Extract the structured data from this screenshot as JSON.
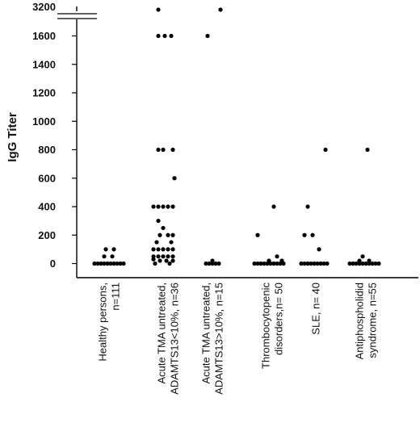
{
  "chart_data": {
    "type": "scatter",
    "title": "",
    "ylabel": "IgG Titer",
    "xlabel": "",
    "ylim": [
      0,
      1700
    ],
    "y_break": {
      "after": 1700,
      "top_label": "3200",
      "top_value": 3200
    },
    "yticks": [
      0,
      200,
      400,
      600,
      800,
      1000,
      1200,
      1400,
      1600
    ],
    "ytick_labels": [
      "0",
      "200",
      "400",
      "600",
      "800",
      "1000",
      "1200",
      "1400",
      "1600"
    ],
    "grid": false,
    "legend": "none",
    "marker_color": "#000000",
    "categories": [
      {
        "lines": [
          "Healthy    persons,",
          "n=111"
        ]
      },
      {
        "lines": [
          "Acute TMA untreated,",
          "ADAMTS13<10%, n=36"
        ]
      },
      {
        "lines": [
          "Acute TMA untreated,",
          "ADAMTS13>10%, n=15"
        ]
      },
      {
        "lines": [
          "Thrombocytopenic",
          "disorders,n= 50"
        ]
      },
      {
        "lines": [
          "SLE, n= 40"
        ]
      },
      {
        "lines": [
          "Antiphospholidid",
          "syndrome, n=55"
        ]
      }
    ],
    "series": [
      {
        "category": 0,
        "points": [
          [
            -0.18,
            0
          ],
          [
            -0.14,
            0
          ],
          [
            -0.1,
            0
          ],
          [
            -0.06,
            0
          ],
          [
            -0.02,
            0
          ],
          [
            0.02,
            0
          ],
          [
            0.06,
            0
          ],
          [
            0.1,
            0
          ],
          [
            0.14,
            0
          ],
          [
            0.18,
            0
          ],
          [
            -0.06,
            50
          ],
          [
            0.04,
            50
          ],
          [
            -0.04,
            100
          ],
          [
            0.06,
            100
          ]
        ]
      },
      {
        "category": 1,
        "points": [
          [
            -0.12,
            3200
          ],
          [
            -0.12,
            1600
          ],
          [
            -0.04,
            1600
          ],
          [
            0.04,
            1600
          ],
          [
            -0.12,
            800
          ],
          [
            -0.06,
            800
          ],
          [
            0.06,
            800
          ],
          [
            0.08,
            600
          ],
          [
            -0.18,
            400
          ],
          [
            -0.12,
            400
          ],
          [
            -0.06,
            400
          ],
          [
            0.0,
            400
          ],
          [
            0.06,
            400
          ],
          [
            -0.12,
            300
          ],
          [
            -0.06,
            250
          ],
          [
            -0.1,
            200
          ],
          [
            0.0,
            200
          ],
          [
            0.06,
            200
          ],
          [
            -0.14,
            150
          ],
          [
            0.04,
            150
          ],
          [
            -0.18,
            100
          ],
          [
            -0.12,
            100
          ],
          [
            -0.06,
            100
          ],
          [
            0.0,
            100
          ],
          [
            0.06,
            100
          ],
          [
            -0.18,
            50
          ],
          [
            -0.12,
            50
          ],
          [
            -0.06,
            50
          ],
          [
            0.0,
            50
          ],
          [
            0.06,
            50
          ],
          [
            -0.18,
            30
          ],
          [
            -0.1,
            20
          ],
          [
            -0.02,
            20
          ],
          [
            0.06,
            20
          ],
          [
            -0.16,
            0
          ],
          [
            0.02,
            0
          ]
        ]
      },
      {
        "category": 2,
        "points": [
          [
            0.1,
            3200
          ],
          [
            -0.06,
            1600
          ],
          [
            -0.08,
            0
          ],
          [
            -0.04,
            0
          ],
          [
            0.0,
            0
          ],
          [
            0.04,
            0
          ],
          [
            0.08,
            0
          ],
          [
            0.0,
            20
          ]
        ]
      },
      {
        "category": 3,
        "points": [
          [
            -0.22,
            0
          ],
          [
            -0.18,
            0
          ],
          [
            -0.14,
            0
          ],
          [
            -0.1,
            0
          ],
          [
            -0.06,
            0
          ],
          [
            -0.02,
            0
          ],
          [
            0.02,
            0
          ],
          [
            0.06,
            0
          ],
          [
            0.1,
            0
          ],
          [
            0.14,
            0
          ],
          [
            -0.18,
            200
          ],
          [
            0.02,
            400
          ],
          [
            0.06,
            50
          ],
          [
            -0.04,
            20
          ],
          [
            0.12,
            20
          ]
        ]
      },
      {
        "category": 4,
        "points": [
          [
            -0.18,
            0
          ],
          [
            -0.14,
            0
          ],
          [
            -0.1,
            0
          ],
          [
            -0.06,
            0
          ],
          [
            -0.02,
            0
          ],
          [
            0.02,
            0
          ],
          [
            0.06,
            0
          ],
          [
            0.1,
            0
          ],
          [
            0.14,
            0
          ],
          [
            -0.1,
            400
          ],
          [
            -0.14,
            200
          ],
          [
            -0.04,
            200
          ],
          [
            0.04,
            100
          ],
          [
            0.12,
            800
          ]
        ]
      },
      {
        "category": 5,
        "points": [
          [
            -0.2,
            0
          ],
          [
            -0.16,
            0
          ],
          [
            -0.12,
            0
          ],
          [
            -0.08,
            0
          ],
          [
            -0.04,
            0
          ],
          [
            0.0,
            0
          ],
          [
            0.04,
            0
          ],
          [
            0.08,
            0
          ],
          [
            0.12,
            0
          ],
          [
            0.16,
            0
          ],
          [
            -0.08,
            20
          ],
          [
            -0.04,
            50
          ],
          [
            0.04,
            20
          ],
          [
            0.02,
            800
          ]
        ]
      }
    ]
  }
}
